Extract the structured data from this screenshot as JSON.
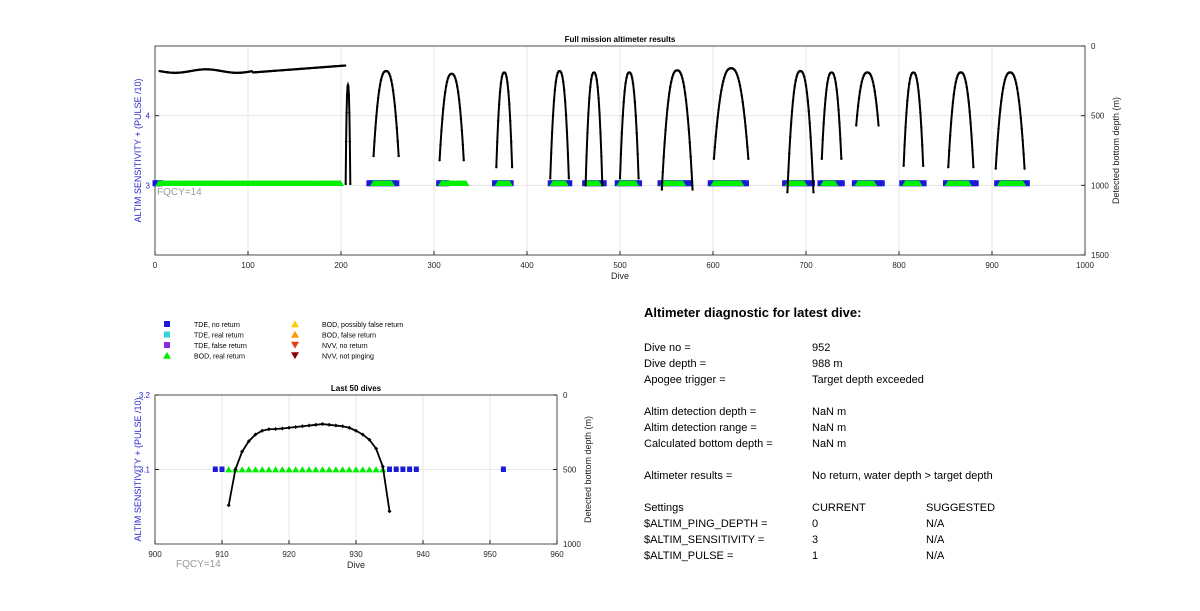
{
  "colors": {
    "tde_no_return": "#1a1ad8",
    "tde_real_return": "#33d6e0",
    "tde_false_return": "#8a2be2",
    "bod_real_return": "#00ee00",
    "bod_possibly_false": "#ffcc00",
    "bod_false": "#ff9900",
    "nvv_no_return": "#e83c1a",
    "nvv_not_pinging": "#8b0000",
    "left_axis": "#2a2acc",
    "fqcy": "#999999"
  },
  "legend": {
    "items": [
      {
        "label": "TDE, no return",
        "shape": "square",
        "color_key": "tde_no_return"
      },
      {
        "label": "TDE, real return",
        "shape": "square",
        "color_key": "tde_real_return"
      },
      {
        "label": "TDE, false return",
        "shape": "square",
        "color_key": "tde_false_return"
      },
      {
        "label": "BOD, real return",
        "shape": "triangle-up",
        "color_key": "bod_real_return"
      },
      {
        "label": "BOD, possibly false return",
        "shape": "triangle-up",
        "color_key": "bod_possibly_false"
      },
      {
        "label": "BOD, false return",
        "shape": "triangle-up",
        "color_key": "bod_false"
      },
      {
        "label": "NVV, no return",
        "shape": "triangle-down",
        "color_key": "nvv_no_return"
      },
      {
        "label": "NVV, not pinging",
        "shape": "triangle-down",
        "color_key": "nvv_not_pinging"
      }
    ]
  },
  "chart_data": [
    {
      "type": "scatter",
      "title": "Full mission altimeter results",
      "xlabel": "Dive",
      "ylabel_left": "ALTIM SENSITIVITY + (PULSE /10)",
      "ylabel_right": "Detected bottom depth (m)",
      "xlim": [
        0,
        1000
      ],
      "ylim_left": [
        2,
        5
      ],
      "ylim_right": [
        0,
        1500
      ],
      "right_axis_reversed": true,
      "xticks": [
        "0",
        "100",
        "200",
        "300",
        "400",
        "500",
        "600",
        "700",
        "800",
        "900",
        "1000"
      ],
      "yticks_left": [
        "3",
        "4"
      ],
      "yticks_right": [
        "0",
        "500",
        "1000",
        "1500"
      ],
      "annotation": "FQCY=14",
      "grid": true,
      "series": {
        "tde_no_return_segments": [
          [
            0,
            8
          ],
          [
            230,
            262
          ],
          [
            305,
            315
          ],
          [
            365,
            385
          ],
          [
            425,
            447
          ],
          [
            462,
            483
          ],
          [
            497,
            523
          ],
          [
            543,
            578
          ],
          [
            597,
            637
          ],
          [
            677,
            708
          ],
          [
            715,
            740
          ],
          [
            752,
            782
          ],
          [
            803,
            828
          ],
          [
            850,
            885
          ],
          [
            905,
            938
          ]
        ],
        "bod_real_return_segments": [
          [
            4,
            200
          ],
          [
            235,
            255
          ],
          [
            308,
            335
          ],
          [
            369,
            382
          ],
          [
            428,
            442
          ],
          [
            465,
            478
          ],
          [
            500,
            518
          ],
          [
            547,
            568
          ],
          [
            601,
            630
          ],
          [
            681,
            698
          ],
          [
            719,
            732
          ],
          [
            756,
            774
          ],
          [
            807,
            822
          ],
          [
            853,
            875
          ],
          [
            909,
            934
          ]
        ],
        "bottom_depth_flat": {
          "start": 5,
          "end": 205,
          "depth_start": 165,
          "depth_mid": 190,
          "depth_end": 140
        },
        "bottom_depth_arcs": [
          {
            "start": 205,
            "end": 210,
            "top": 280,
            "bottom": 990
          },
          {
            "start": 235,
            "end": 262,
            "top": 180,
            "bottom": 790
          },
          {
            "start": 306,
            "end": 332,
            "top": 200,
            "bottom": 820
          },
          {
            "start": 367,
            "end": 384,
            "top": 190,
            "bottom": 870
          },
          {
            "start": 425,
            "end": 445,
            "top": 180,
            "bottom": 950
          },
          {
            "start": 463,
            "end": 481,
            "top": 190,
            "bottom": 1000
          },
          {
            "start": 500,
            "end": 520,
            "top": 190,
            "bottom": 950
          },
          {
            "start": 545,
            "end": 578,
            "top": 175,
            "bottom": 1030
          },
          {
            "start": 601,
            "end": 638,
            "top": 160,
            "bottom": 810
          },
          {
            "start": 680,
            "end": 708,
            "top": 180,
            "bottom": 1050
          },
          {
            "start": 717,
            "end": 738,
            "top": 190,
            "bottom": 810
          },
          {
            "start": 754,
            "end": 778,
            "top": 190,
            "bottom": 570
          },
          {
            "start": 805,
            "end": 826,
            "top": 190,
            "bottom": 860
          },
          {
            "start": 853,
            "end": 880,
            "top": 190,
            "bottom": 870
          },
          {
            "start": 904,
            "end": 935,
            "top": 190,
            "bottom": 880
          }
        ]
      }
    },
    {
      "type": "scatter",
      "title": "Last 50 dives",
      "xlabel": "Dive",
      "ylabel_left": "ALTIM SENSITIVITY + (PULSE /10)",
      "ylabel_right": "Detected bottom depth (m)",
      "xlim": [
        900,
        960
      ],
      "ylim_left": [
        3.0,
        3.2
      ],
      "ylim_right": [
        0,
        1000
      ],
      "right_axis_reversed": true,
      "xticks": [
        "900",
        "910",
        "920",
        "930",
        "940",
        "950",
        "960"
      ],
      "yticks_left": [
        "3.1",
        "3.2"
      ],
      "yticks_right": [
        "0",
        "500",
        "1000"
      ],
      "annotation": "FQCY=14",
      "grid": true,
      "series": [
        {
          "name": "TDE, no return",
          "y": 3.1,
          "x": [
            909,
            910,
            935,
            936,
            937,
            938,
            939,
            952
          ]
        },
        {
          "name": "BOD, real return",
          "y": 3.1,
          "x": [
            911,
            912,
            913,
            914,
            915,
            916,
            917,
            918,
            919,
            920,
            921,
            922,
            923,
            924,
            925,
            926,
            927,
            928,
            929,
            930,
            931,
            932,
            933,
            934
          ]
        },
        {
          "name": "Detected bottom depth",
          "x": [
            911,
            912,
            913,
            914,
            915,
            916,
            917,
            918,
            919,
            920,
            921,
            922,
            923,
            924,
            925,
            926,
            927,
            928,
            929,
            930,
            931,
            932,
            933,
            934,
            935
          ],
          "depth": [
            740,
            500,
            380,
            310,
            265,
            240,
            230,
            228,
            225,
            220,
            215,
            210,
            205,
            200,
            195,
            200,
            205,
            210,
            220,
            240,
            265,
            300,
            360,
            480,
            780
          ]
        }
      ]
    }
  ],
  "diagnostic": {
    "heading": "Altimeter diagnostic for latest dive:",
    "dive_no_label": "Dive no =",
    "dive_no_value": "952",
    "dive_depth_label": "Dive depth =",
    "dive_depth_value": "988 m",
    "apogee_label": "Apogee trigger =",
    "apogee_value": "Target depth exceeded",
    "detect_depth_label": "Altim detection depth =",
    "detect_depth_value": "NaN m",
    "detect_range_label": "Altim detection range =",
    "detect_range_value": "NaN m",
    "calc_depth_label": "Calculated bottom depth =",
    "calc_depth_value": "NaN m",
    "results_label": "Altimeter results =",
    "results_value": "No return, water depth > target depth",
    "settings_label": "Settings",
    "current_label": "CURRENT",
    "suggested_label": "SUGGESTED",
    "settings": [
      {
        "name": "$ALTIM_PING_DEPTH =",
        "current": "0",
        "suggested": "N/A"
      },
      {
        "name": "$ALTIM_SENSITIVITY =",
        "current": "3",
        "suggested": "N/A"
      },
      {
        "name": "$ALTIM_PULSE =",
        "current": "1",
        "suggested": "N/A"
      }
    ]
  }
}
